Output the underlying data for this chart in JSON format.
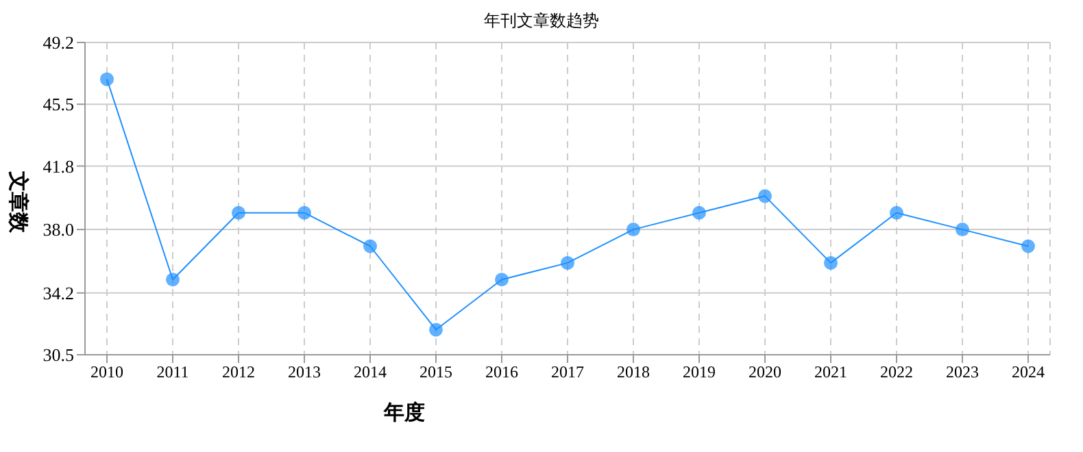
{
  "chart_data": {
    "type": "line",
    "title": "年刊文章数趋势",
    "xlabel": "年度",
    "ylabel": "文章数",
    "categories": [
      "2010",
      "2011",
      "2012",
      "2013",
      "2014",
      "2015",
      "2016",
      "2017",
      "2018",
      "2019",
      "2020",
      "2021",
      "2022",
      "2023",
      "2024"
    ],
    "series": [
      {
        "color": "#1e90ff",
        "values": [
          47,
          35,
          39,
          39,
          37,
          32,
          35,
          36,
          38,
          39,
          40,
          36,
          39,
          38,
          37
        ]
      }
    ],
    "ylim": [
      30.5,
      49.2
    ],
    "yticks": [
      30.5,
      34.2,
      {
        "value": 38,
        "label": "38.0"
      },
      41.8,
      45.5,
      49.2
    ],
    "grid": true,
    "marker": "circle",
    "line_style": "solid"
  }
}
